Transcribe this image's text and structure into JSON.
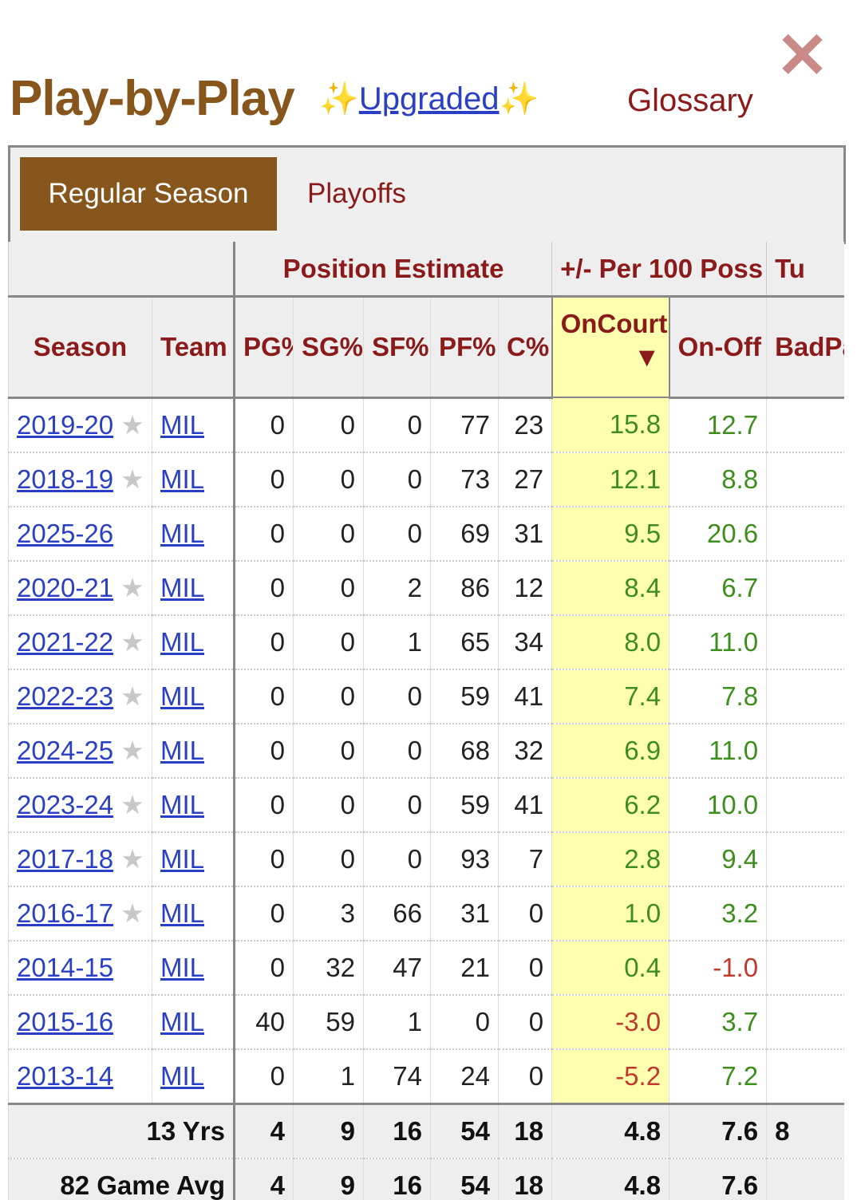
{
  "header": {
    "title": "Play-by-Play",
    "upgraded_link": "Upgraded",
    "sparkle": "✨",
    "glossary": "Glossary",
    "close": "✕"
  },
  "tabs": [
    {
      "label": "Regular Season",
      "active": true
    },
    {
      "label": "Playoffs",
      "active": false
    }
  ],
  "groups": {
    "position": "Position Estimate",
    "plusminus": "+/- Per 100 Poss",
    "turnovers": "Tu"
  },
  "columns": [
    "Season",
    "Team",
    "PG%",
    "SG%",
    "SF%",
    "PF%",
    "C%",
    "OnCourt",
    "On-Off",
    "BadPa"
  ],
  "sort_arrow": "▼",
  "rows": [
    {
      "season": "2019-20",
      "star": true,
      "team": "MIL",
      "pg": "0",
      "sg": "0",
      "sf": "0",
      "pf": "77",
      "c": "23",
      "oncourt": "15.8",
      "onoff": "12.7"
    },
    {
      "season": "2018-19",
      "star": true,
      "team": "MIL",
      "pg": "0",
      "sg": "0",
      "sf": "0",
      "pf": "73",
      "c": "27",
      "oncourt": "12.1",
      "onoff": "8.8"
    },
    {
      "season": "2025-26",
      "star": false,
      "team": "MIL",
      "pg": "0",
      "sg": "0",
      "sf": "0",
      "pf": "69",
      "c": "31",
      "oncourt": "9.5",
      "onoff": "20.6"
    },
    {
      "season": "2020-21",
      "star": true,
      "team": "MIL",
      "pg": "0",
      "sg": "0",
      "sf": "2",
      "pf": "86",
      "c": "12",
      "oncourt": "8.4",
      "onoff": "6.7"
    },
    {
      "season": "2021-22",
      "star": true,
      "team": "MIL",
      "pg": "0",
      "sg": "0",
      "sf": "1",
      "pf": "65",
      "c": "34",
      "oncourt": "8.0",
      "onoff": "11.0"
    },
    {
      "season": "2022-23",
      "star": true,
      "team": "MIL",
      "pg": "0",
      "sg": "0",
      "sf": "0",
      "pf": "59",
      "c": "41",
      "oncourt": "7.4",
      "onoff": "7.8"
    },
    {
      "season": "2024-25",
      "star": true,
      "team": "MIL",
      "pg": "0",
      "sg": "0",
      "sf": "0",
      "pf": "68",
      "c": "32",
      "oncourt": "6.9",
      "onoff": "11.0"
    },
    {
      "season": "2023-24",
      "star": true,
      "team": "MIL",
      "pg": "0",
      "sg": "0",
      "sf": "0",
      "pf": "59",
      "c": "41",
      "oncourt": "6.2",
      "onoff": "10.0"
    },
    {
      "season": "2017-18",
      "star": true,
      "team": "MIL",
      "pg": "0",
      "sg": "0",
      "sf": "0",
      "pf": "93",
      "c": "7",
      "oncourt": "2.8",
      "onoff": "9.4"
    },
    {
      "season": "2016-17",
      "star": true,
      "team": "MIL",
      "pg": "0",
      "sg": "3",
      "sf": "66",
      "pf": "31",
      "c": "0",
      "oncourt": "1.0",
      "onoff": "3.2"
    },
    {
      "season": "2014-15",
      "star": false,
      "team": "MIL",
      "pg": "0",
      "sg": "32",
      "sf": "47",
      "pf": "21",
      "c": "0",
      "oncourt": "0.4",
      "onoff": "-1.0"
    },
    {
      "season": "2015-16",
      "star": false,
      "team": "MIL",
      "pg": "40",
      "sg": "59",
      "sf": "1",
      "pf": "0",
      "c": "0",
      "oncourt": "-3.0",
      "onoff": "3.7"
    },
    {
      "season": "2013-14",
      "star": false,
      "team": "MIL",
      "pg": "0",
      "sg": "1",
      "sf": "74",
      "pf": "24",
      "c": "0",
      "oncourt": "-5.2",
      "onoff": "7.2"
    }
  ],
  "totals": [
    {
      "label": "13 Yrs",
      "pg": "4",
      "sg": "9",
      "sf": "16",
      "pf": "54",
      "c": "18",
      "oncourt": "4.8",
      "onoff": "7.6",
      "extra": "8"
    },
    {
      "label": "82 Game Avg",
      "pg": "4",
      "sg": "9",
      "sf": "16",
      "pf": "54",
      "c": "18",
      "oncourt": "4.8",
      "onoff": "7.6",
      "extra": ""
    }
  ]
}
